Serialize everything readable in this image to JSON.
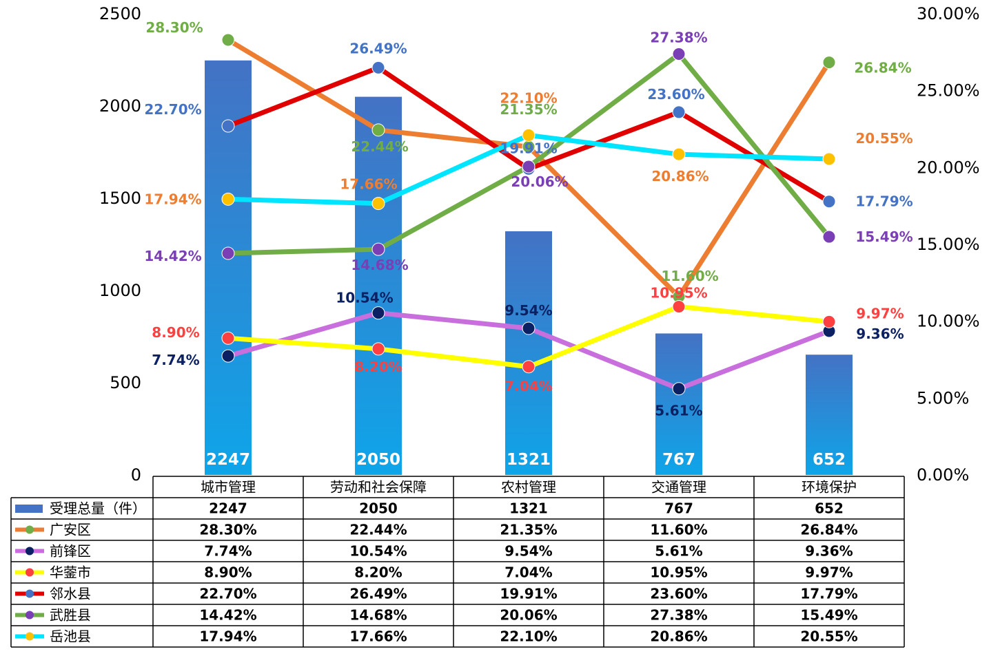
{
  "chart_data": {
    "type": "bar",
    "categories": [
      "城市管理",
      "劳动和社会保障",
      "农村管理",
      "交通管理",
      "环境保护"
    ],
    "bar_series": {
      "name": "受理总量（件）",
      "values": [
        2247,
        2050,
        1321,
        767,
        652
      ],
      "color_top": "#4472C4",
      "color_bottom": "#0EA5E9"
    },
    "line_series": [
      {
        "name": "广安区",
        "values": [
          28.3,
          22.44,
          21.35,
          11.6,
          26.84
        ],
        "display": [
          "28.30%",
          "22.44%",
          "21.35%",
          "11.60%",
          "26.84%"
        ],
        "color": "#ED7D31",
        "marker_color": "#70AD47",
        "label_color": "#70AD47"
      },
      {
        "name": "前锋区",
        "values": [
          7.74,
          10.54,
          9.54,
          5.61,
          9.36
        ],
        "display": [
          "7.74%",
          "10.54%",
          "9.54%",
          "5.61%",
          "9.36%"
        ],
        "color": "#C96FDD",
        "marker_color": "#0B2163",
        "label_color": "#0B2163"
      },
      {
        "name": "华蓥市",
        "values": [
          8.9,
          8.2,
          7.04,
          10.95,
          9.97
        ],
        "display": [
          "8.90%",
          "8.20%",
          "7.04%",
          "10.95%",
          "9.97%"
        ],
        "color": "#FFFF00",
        "marker_color": "#FF4040",
        "label_color": "#FF4040"
      },
      {
        "name": "邻水县",
        "values": [
          22.7,
          26.49,
          19.91,
          23.6,
          17.79
        ],
        "display": [
          "22.70%",
          "26.49%",
          "19.91%",
          "23.60%",
          "17.79%"
        ],
        "color": "#E00000",
        "marker_color": "#4472C4",
        "label_color": "#4472C4"
      },
      {
        "name": "武胜县",
        "values": [
          14.42,
          14.68,
          20.06,
          27.38,
          15.49
        ],
        "display": [
          "14.42%",
          "14.68%",
          "20.06%",
          "27.38%",
          "15.49%"
        ],
        "color": "#70AD47",
        "marker_color": "#7B3FB5",
        "label_color": "#7B3FB5"
      },
      {
        "name": "岳池县",
        "values": [
          17.94,
          17.66,
          22.1,
          20.86,
          20.55
        ],
        "display": [
          "17.94%",
          "17.66%",
          "22.10%",
          "20.86%",
          "20.55%"
        ],
        "color": "#00E5FF",
        "marker_color": "#FFC000",
        "label_color": "#ED7D31"
      }
    ],
    "y_left": {
      "ticks": [
        "0",
        "500",
        "1000",
        "1500",
        "2000",
        "2500"
      ],
      "ylim": [
        0,
        2500
      ]
    },
    "y_right": {
      "ticks": [
        "0.00%",
        "5.00%",
        "10.00%",
        "15.00%",
        "20.00%",
        "25.00%",
        "30.00%"
      ],
      "ylim": [
        0,
        30
      ]
    },
    "grid": false,
    "legend": "data-table-bottom"
  }
}
